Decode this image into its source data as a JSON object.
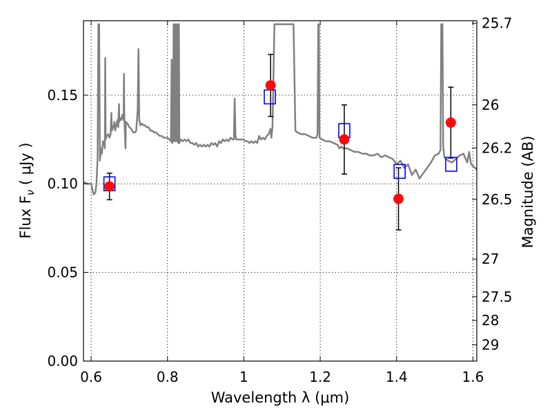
{
  "chart_data": {
    "type": "scatter",
    "title": "",
    "xlabel": "Wavelength  λ (μm)",
    "ylabel": "Flux  F",
    "ylabel_subscript": "ν",
    "ylabel_unit": " ( μJy )",
    "y2label": "Magnitude (AB)",
    "xlim": [
      0.58,
      1.61
    ],
    "ylim": [
      0.0,
      0.192
    ],
    "grid": true,
    "x_ticks": [
      {
        "value": 0.6,
        "label": "0.6"
      },
      {
        "value": 0.8,
        "label": "0.8"
      },
      {
        "value": 1.0,
        "label": "1"
      },
      {
        "value": 1.2,
        "label": "1.2"
      },
      {
        "value": 1.4,
        "label": "1.4"
      },
      {
        "value": 1.6,
        "label": "1.6"
      }
    ],
    "y_ticks": [
      {
        "value": 0.0,
        "label": "0.00"
      },
      {
        "value": 0.05,
        "label": "0.05"
      },
      {
        "value": 0.1,
        "label": "0.10"
      },
      {
        "value": 0.15,
        "label": "0.15"
      }
    ],
    "y2_ticks": [
      {
        "mag": 25.7,
        "label": "25.7"
      },
      {
        "mag": 26.0,
        "label": "26"
      },
      {
        "mag": 26.2,
        "label": "26.2"
      },
      {
        "mag": 26.5,
        "label": "26.5"
      },
      {
        "mag": 27.0,
        "label": "27"
      },
      {
        "mag": 27.5,
        "label": "27.5"
      },
      {
        "mag": 28.0,
        "label": "28"
      },
      {
        "mag": 29.0,
        "label": "29"
      }
    ],
    "series": [
      {
        "kind": "model-spectrum",
        "color": "#808080",
        "points": [
          [
            0.58,
            0.101
          ],
          [
            0.59,
            0.1
          ],
          [
            0.6,
            0.1
          ],
          [
            0.603,
            0.097
          ],
          [
            0.607,
            0.094
          ],
          [
            0.611,
            0.095
          ],
          [
            0.614,
            0.1
          ],
          [
            0.617,
            0.115
          ],
          [
            0.619,
            0.19
          ],
          [
            0.621,
            0.19
          ],
          [
            0.623,
            0.113
          ],
          [
            0.626,
            0.12
          ],
          [
            0.628,
            0.117
          ],
          [
            0.631,
            0.124
          ],
          [
            0.634,
            0.123
          ],
          [
            0.636,
            0.12
          ],
          [
            0.637,
            0.171
          ],
          [
            0.638,
            0.125
          ],
          [
            0.641,
            0.127
          ],
          [
            0.645,
            0.128
          ],
          [
            0.648,
            0.126
          ],
          [
            0.651,
            0.128
          ],
          [
            0.653,
            0.14
          ],
          [
            0.654,
            0.13
          ],
          [
            0.658,
            0.132
          ],
          [
            0.661,
            0.135
          ],
          [
            0.663,
            0.13
          ],
          [
            0.666,
            0.133
          ],
          [
            0.669,
            0.136
          ],
          [
            0.671,
            0.132
          ],
          [
            0.673,
            0.145
          ],
          [
            0.674,
            0.135
          ],
          [
            0.676,
            0.137
          ],
          [
            0.679,
            0.136
          ],
          [
            0.682,
            0.139
          ],
          [
            0.685,
            0.136
          ],
          [
            0.686,
            0.162
          ],
          [
            0.687,
            0.137
          ],
          [
            0.69,
            0.12
          ],
          [
            0.691,
            0.135
          ],
          [
            0.695,
            0.134
          ],
          [
            0.7,
            0.132
          ],
          [
            0.705,
            0.131
          ],
          [
            0.71,
            0.129
          ],
          [
            0.715,
            0.129
          ],
          [
            0.718,
            0.13
          ],
          [
            0.72,
            0.136
          ],
          [
            0.722,
            0.142
          ],
          [
            0.724,
            0.176
          ],
          [
            0.726,
            0.136
          ],
          [
            0.729,
            0.133
          ],
          [
            0.733,
            0.134
          ],
          [
            0.737,
            0.133
          ],
          [
            0.741,
            0.133
          ],
          [
            0.745,
            0.132
          ],
          [
            0.75,
            0.132
          ],
          [
            0.755,
            0.13
          ],
          [
            0.76,
            0.13
          ],
          [
            0.765,
            0.129
          ],
          [
            0.77,
            0.129
          ],
          [
            0.775,
            0.128
          ],
          [
            0.78,
            0.127
          ],
          [
            0.785,
            0.127
          ],
          [
            0.79,
            0.126
          ],
          [
            0.795,
            0.126
          ],
          [
            0.8,
            0.126
          ],
          [
            0.805,
            0.125
          ],
          [
            0.809,
            0.124
          ],
          [
            0.811,
            0.17
          ],
          [
            0.812,
            0.123
          ],
          [
            0.815,
            0.125
          ],
          [
            0.816,
            0.19
          ],
          [
            0.817,
            0.124
          ],
          [
            0.819,
            0.19
          ],
          [
            0.82,
            0.124
          ],
          [
            0.823,
            0.19
          ],
          [
            0.824,
            0.124
          ],
          [
            0.827,
            0.19
          ],
          [
            0.828,
            0.123
          ],
          [
            0.83,
            0.19
          ],
          [
            0.831,
            0.123
          ],
          [
            0.835,
            0.125
          ],
          [
            0.84,
            0.124
          ],
          [
            0.845,
            0.125
          ],
          [
            0.85,
            0.124
          ],
          [
            0.855,
            0.125
          ],
          [
            0.86,
            0.123
          ],
          [
            0.865,
            0.123
          ],
          [
            0.87,
            0.122
          ],
          [
            0.875,
            0.123
          ],
          [
            0.88,
            0.121
          ],
          [
            0.885,
            0.122
          ],
          [
            0.89,
            0.121
          ],
          [
            0.895,
            0.122
          ],
          [
            0.9,
            0.121
          ],
          [
            0.905,
            0.122
          ],
          [
            0.91,
            0.121
          ],
          [
            0.915,
            0.123
          ],
          [
            0.92,
            0.122
          ],
          [
            0.925,
            0.123
          ],
          [
            0.93,
            0.121
          ],
          [
            0.935,
            0.124
          ],
          [
            0.94,
            0.123
          ],
          [
            0.945,
            0.125
          ],
          [
            0.95,
            0.124
          ],
          [
            0.955,
            0.125
          ],
          [
            0.96,
            0.124
          ],
          [
            0.965,
            0.126
          ],
          [
            0.97,
            0.125
          ],
          [
            0.974,
            0.125
          ],
          [
            0.976,
            0.148
          ],
          [
            0.978,
            0.127
          ],
          [
            0.98,
            0.125
          ],
          [
            0.985,
            0.125
          ],
          [
            0.99,
            0.125
          ],
          [
            0.995,
            0.125
          ],
          [
            1.0,
            0.125
          ],
          [
            1.005,
            0.124
          ],
          [
            1.01,
            0.124
          ],
          [
            1.015,
            0.123
          ],
          [
            1.02,
            0.124
          ],
          [
            1.025,
            0.123
          ],
          [
            1.03,
            0.124
          ],
          [
            1.035,
            0.123
          ],
          [
            1.04,
            0.127
          ],
          [
            1.045,
            0.125
          ],
          [
            1.05,
            0.126
          ],
          [
            1.055,
            0.125
          ],
          [
            1.06,
            0.127
          ],
          [
            1.065,
            0.128
          ],
          [
            1.07,
            0.131
          ],
          [
            1.072,
            0.126
          ],
          [
            1.075,
            0.132
          ],
          [
            1.08,
            0.19
          ],
          [
            1.082,
            0.19
          ],
          [
            1.085,
            0.19
          ],
          [
            1.1,
            0.19
          ],
          [
            1.11,
            0.19
          ],
          [
            1.12,
            0.19
          ],
          [
            1.13,
            0.19
          ],
          [
            1.135,
            0.13
          ],
          [
            1.14,
            0.129
          ],
          [
            1.15,
            0.128
          ],
          [
            1.16,
            0.128
          ],
          [
            1.17,
            0.127
          ],
          [
            1.18,
            0.126
          ],
          [
            1.19,
            0.126
          ],
          [
            1.193,
            0.128
          ],
          [
            1.195,
            0.19
          ],
          [
            1.196,
            0.19
          ],
          [
            1.198,
            0.126
          ],
          [
            1.205,
            0.125
          ],
          [
            1.215,
            0.124
          ],
          [
            1.225,
            0.124
          ],
          [
            1.235,
            0.123
          ],
          [
            1.245,
            0.122
          ],
          [
            1.25,
            0.12
          ],
          [
            1.255,
            0.121
          ],
          [
            1.26,
            0.12
          ],
          [
            1.27,
            0.12
          ],
          [
            1.28,
            0.119
          ],
          [
            1.29,
            0.118
          ],
          [
            1.3,
            0.118
          ],
          [
            1.31,
            0.117
          ],
          [
            1.32,
            0.117
          ],
          [
            1.33,
            0.116
          ],
          [
            1.34,
            0.116
          ],
          [
            1.35,
            0.117
          ],
          [
            1.36,
            0.115
          ],
          [
            1.37,
            0.116
          ],
          [
            1.38,
            0.115
          ],
          [
            1.39,
            0.114
          ],
          [
            1.4,
            0.111
          ],
          [
            1.41,
            0.113
          ],
          [
            1.42,
            0.109
          ],
          [
            1.43,
            0.111
          ],
          [
            1.44,
            0.105
          ],
          [
            1.45,
            0.108
          ],
          [
            1.46,
            0.103
          ],
          [
            1.47,
            0.106
          ],
          [
            1.48,
            0.109
          ],
          [
            1.49,
            0.112
          ],
          [
            1.5,
            0.116
          ],
          [
            1.51,
            0.117
          ],
          [
            1.515,
            0.119
          ],
          [
            1.517,
            0.19
          ],
          [
            1.52,
            0.19
          ],
          [
            1.522,
            0.121
          ],
          [
            1.525,
            0.115
          ],
          [
            1.535,
            0.113
          ],
          [
            1.545,
            0.112
          ],
          [
            1.555,
            0.114
          ],
          [
            1.565,
            0.116
          ],
          [
            1.575,
            0.117
          ],
          [
            1.585,
            0.112
          ],
          [
            1.59,
            0.118
          ],
          [
            1.595,
            0.111
          ],
          [
            1.605,
            0.109
          ],
          [
            1.61,
            0.108
          ]
        ]
      },
      {
        "kind": "model-photometry",
        "marker": "open-square",
        "color": "#0000ff",
        "points": [
          {
            "x": 0.648,
            "y": 0.1
          },
          {
            "x": 1.068,
            "y": 0.149
          },
          {
            "x": 1.263,
            "y": 0.13
          },
          {
            "x": 1.408,
            "y": 0.107
          },
          {
            "x": 1.543,
            "y": 0.111
          }
        ]
      },
      {
        "kind": "observed-photometry",
        "marker": "filled-circle",
        "color": "#ff0000",
        "errorbar_color": "#000000",
        "points": [
          {
            "x": 0.648,
            "y": 0.0985,
            "err": 0.0075
          },
          {
            "x": 1.07,
            "y": 0.1555,
            "err": 0.0175
          },
          {
            "x": 1.263,
            "y": 0.125,
            "err": 0.0195
          },
          {
            "x": 1.405,
            "y": 0.0915,
            "err": 0.0175
          },
          {
            "x": 1.542,
            "y": 0.1345,
            "err": 0.02
          }
        ]
      }
    ]
  }
}
